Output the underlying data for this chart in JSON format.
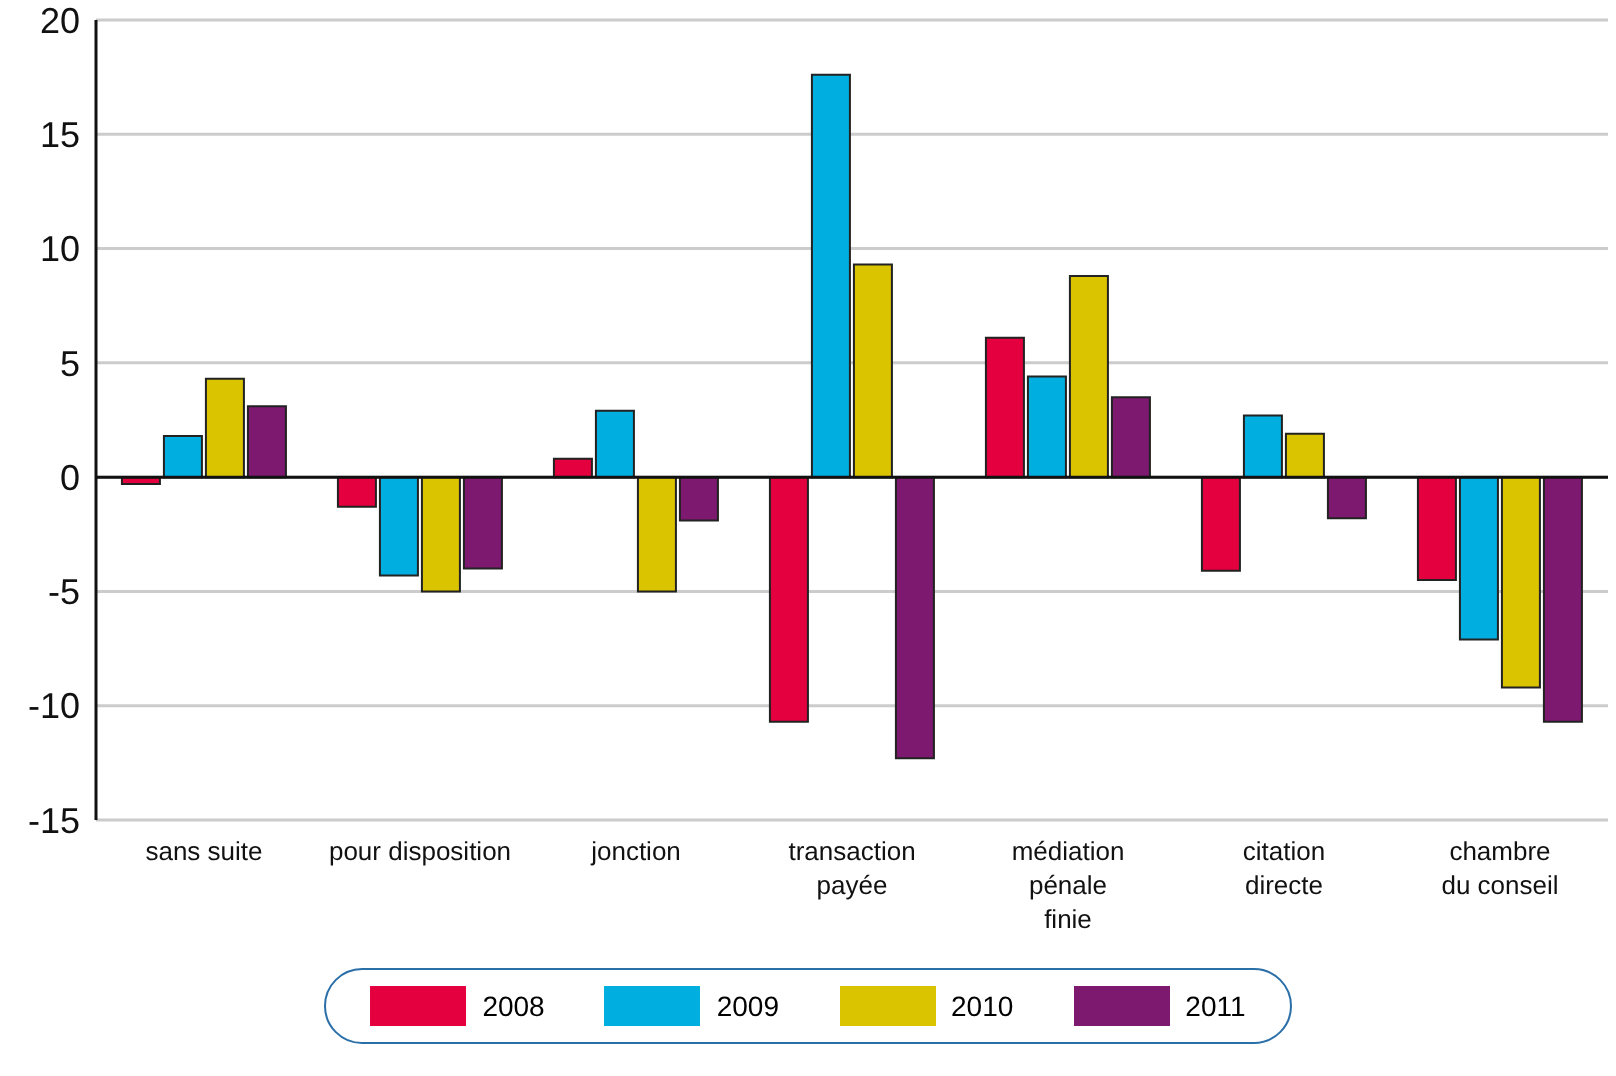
{
  "chart_data": {
    "type": "bar",
    "categories": [
      "sans suite",
      "pour disposition",
      "jonction",
      "transaction\npayée",
      "médiation\npénale\nfinie",
      "citation\ndirecte",
      "chambre\ndu conseil"
    ],
    "series": [
      {
        "name": "2008",
        "color": "#e4003f",
        "values": [
          -0.3,
          -1.3,
          0.8,
          -10.7,
          6.1,
          -4.1,
          -4.5
        ]
      },
      {
        "name": "2009",
        "color": "#00afe0",
        "values": [
          1.8,
          -4.3,
          2.9,
          17.6,
          4.4,
          2.7,
          -7.1
        ]
      },
      {
        "name": "2010",
        "color": "#dac400",
        "values": [
          4.3,
          -5.0,
          -5.0,
          9.3,
          8.8,
          1.9,
          -9.2
        ]
      },
      {
        "name": "2011",
        "color": "#7d1a6f",
        "values": [
          3.1,
          -4.0,
          -1.9,
          -12.3,
          3.5,
          -1.8,
          -10.7
        ]
      }
    ],
    "ylim": [
      -15,
      20
    ],
    "yticks": [
      -15,
      -10,
      -5,
      0,
      5,
      10,
      15,
      20
    ],
    "grid": "y",
    "legend": "bottom"
  }
}
